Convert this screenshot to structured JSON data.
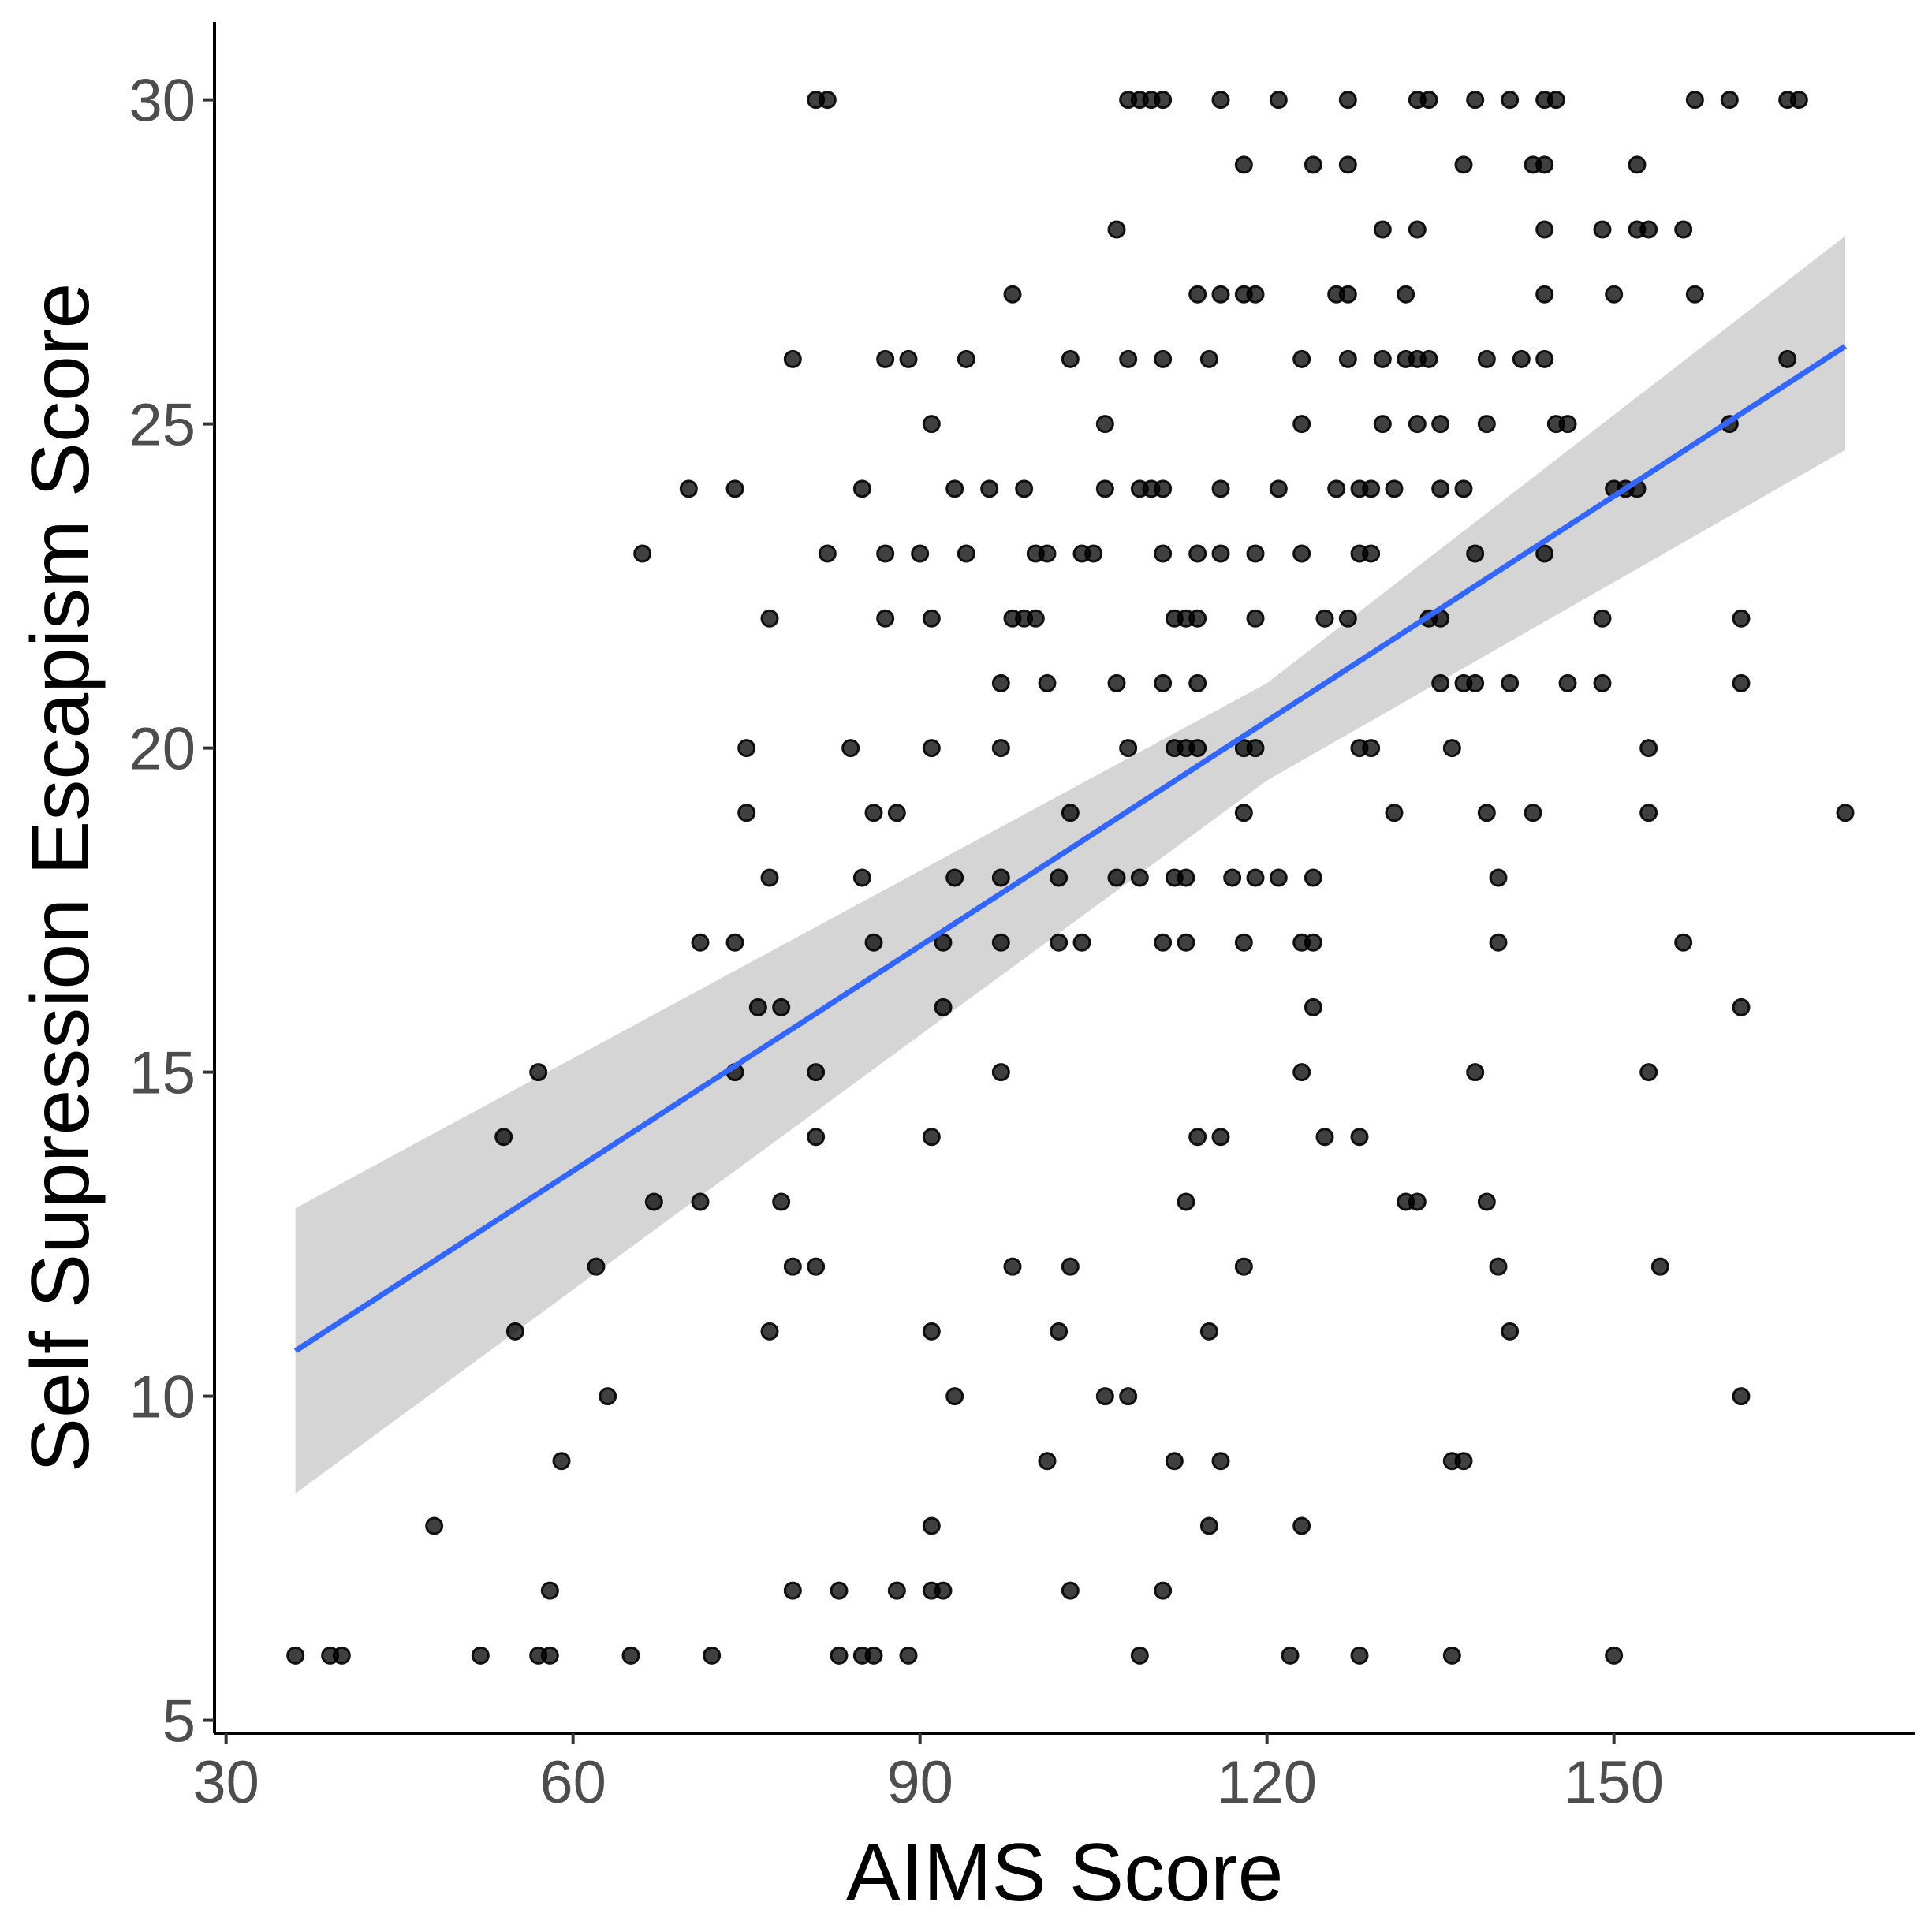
{
  "chart_data": {
    "type": "scatter",
    "title": "",
    "xlabel": "AIMS Score",
    "ylabel": "Self Supression Escapism Score",
    "xlim": [
      29,
      176
    ],
    "ylim": [
      4.8,
      31.2
    ],
    "x_ticks": [
      30,
      60,
      90,
      120,
      150
    ],
    "y_ticks": [
      5,
      10,
      15,
      20,
      25,
      30
    ],
    "grid": false,
    "legend": "none",
    "colors": {
      "points": "#000000",
      "fit_line": "#3366FF",
      "ci_band": "#D3D3D3"
    },
    "fit_line": {
      "x": [
        36,
        170
      ],
      "y": [
        10.7,
        26.2
      ]
    },
    "confidence_band": {
      "x": [
        36,
        120,
        170
      ],
      "lower": [
        8.5,
        19.5,
        24.6
      ],
      "upper": [
        12.9,
        21.0,
        27.9
      ]
    },
    "points": [
      [
        36,
        6
      ],
      [
        39,
        6
      ],
      [
        40,
        6
      ],
      [
        52,
        6
      ],
      [
        57,
        6
      ],
      [
        58,
        6
      ],
      [
        65,
        6
      ],
      [
        72,
        6
      ],
      [
        83,
        6
      ],
      [
        85,
        6
      ],
      [
        86,
        6
      ],
      [
        89,
        6
      ],
      [
        109,
        6
      ],
      [
        122,
        6
      ],
      [
        128,
        6
      ],
      [
        136,
        6
      ],
      [
        150,
        6
      ],
      [
        58,
        7
      ],
      [
        79,
        7
      ],
      [
        83,
        7
      ],
      [
        88,
        7
      ],
      [
        91,
        7
      ],
      [
        92,
        7
      ],
      [
        103,
        7
      ],
      [
        111,
        7
      ],
      [
        48,
        8
      ],
      [
        91,
        8
      ],
      [
        115,
        8
      ],
      [
        123,
        8
      ],
      [
        59,
        9
      ],
      [
        101,
        9
      ],
      [
        112,
        9
      ],
      [
        116,
        9
      ],
      [
        136,
        9
      ],
      [
        137,
        9
      ],
      [
        63,
        10
      ],
      [
        93,
        10
      ],
      [
        106,
        10
      ],
      [
        108,
        10
      ],
      [
        161,
        10
      ],
      [
        55,
        11
      ],
      [
        77,
        11
      ],
      [
        91,
        11
      ],
      [
        102,
        11
      ],
      [
        115,
        11
      ],
      [
        141,
        11
      ],
      [
        62,
        12
      ],
      [
        79,
        12
      ],
      [
        81,
        12
      ],
      [
        98,
        12
      ],
      [
        103,
        12
      ],
      [
        118,
        12
      ],
      [
        140,
        12
      ],
      [
        154,
        12
      ],
      [
        67,
        13
      ],
      [
        71,
        13
      ],
      [
        78,
        13
      ],
      [
        113,
        13
      ],
      [
        132,
        13
      ],
      [
        133,
        13
      ],
      [
        139,
        13
      ],
      [
        54,
        14
      ],
      [
        81,
        14
      ],
      [
        91,
        14
      ],
      [
        114,
        14
      ],
      [
        116,
        14
      ],
      [
        125,
        14
      ],
      [
        128,
        14
      ],
      [
        57,
        15
      ],
      [
        74,
        15
      ],
      [
        81,
        15
      ],
      [
        97,
        15
      ],
      [
        123,
        15
      ],
      [
        138,
        15
      ],
      [
        153,
        15
      ],
      [
        76,
        16
      ],
      [
        78,
        16
      ],
      [
        92,
        16
      ],
      [
        124,
        16
      ],
      [
        161,
        16
      ],
      [
        71,
        17
      ],
      [
        74,
        17
      ],
      [
        86,
        17
      ],
      [
        92,
        17
      ],
      [
        97,
        17
      ],
      [
        102,
        17
      ],
      [
        104,
        17
      ],
      [
        111,
        17
      ],
      [
        113,
        17
      ],
      [
        118,
        17
      ],
      [
        123,
        17
      ],
      [
        124,
        17
      ],
      [
        140,
        17
      ],
      [
        156,
        17
      ],
      [
        77,
        18
      ],
      [
        85,
        18
      ],
      [
        93,
        18
      ],
      [
        97,
        18
      ],
      [
        102,
        18
      ],
      [
        107,
        18
      ],
      [
        109,
        18
      ],
      [
        112,
        18
      ],
      [
        113,
        18
      ],
      [
        117,
        18
      ],
      [
        119,
        18
      ],
      [
        121,
        18
      ],
      [
        124,
        18
      ],
      [
        140,
        18
      ],
      [
        75,
        19
      ],
      [
        86,
        19
      ],
      [
        88,
        19
      ],
      [
        103,
        19
      ],
      [
        118,
        19
      ],
      [
        131,
        19
      ],
      [
        139,
        19
      ],
      [
        143,
        19
      ],
      [
        153,
        19
      ],
      [
        170,
        19
      ],
      [
        75,
        20
      ],
      [
        84,
        20
      ],
      [
        91,
        20
      ],
      [
        97,
        20
      ],
      [
        108,
        20
      ],
      [
        112,
        20
      ],
      [
        113,
        20
      ],
      [
        114,
        20
      ],
      [
        118,
        20
      ],
      [
        119,
        20
      ],
      [
        128,
        20
      ],
      [
        129,
        20
      ],
      [
        136,
        20
      ],
      [
        153,
        20
      ],
      [
        97,
        21
      ],
      [
        101,
        21
      ],
      [
        107,
        21
      ],
      [
        111,
        21
      ],
      [
        114,
        21
      ],
      [
        135,
        21
      ],
      [
        137,
        21
      ],
      [
        138,
        21
      ],
      [
        141,
        21
      ],
      [
        146,
        21
      ],
      [
        149,
        21
      ],
      [
        161,
        21
      ],
      [
        77,
        22
      ],
      [
        87,
        22
      ],
      [
        91,
        22
      ],
      [
        98,
        22
      ],
      [
        99,
        22
      ],
      [
        100,
        22
      ],
      [
        112,
        22
      ],
      [
        113,
        22
      ],
      [
        114,
        22
      ],
      [
        119,
        22
      ],
      [
        125,
        22
      ],
      [
        127,
        22
      ],
      [
        134,
        22
      ],
      [
        135,
        22
      ],
      [
        149,
        22
      ],
      [
        161,
        22
      ],
      [
        66,
        23
      ],
      [
        82,
        23
      ],
      [
        87,
        23
      ],
      [
        90,
        23
      ],
      [
        94,
        23
      ],
      [
        100,
        23
      ],
      [
        101,
        23
      ],
      [
        104,
        23
      ],
      [
        105,
        23
      ],
      [
        111,
        23
      ],
      [
        114,
        23
      ],
      [
        116,
        23
      ],
      [
        119,
        23
      ],
      [
        123,
        23
      ],
      [
        128,
        23
      ],
      [
        129,
        23
      ],
      [
        138,
        23
      ],
      [
        144,
        23
      ],
      [
        70,
        24
      ],
      [
        74,
        24
      ],
      [
        85,
        24
      ],
      [
        93,
        24
      ],
      [
        96,
        24
      ],
      [
        99,
        24
      ],
      [
        106,
        24
      ],
      [
        109,
        24
      ],
      [
        110,
        24
      ],
      [
        111,
        24
      ],
      [
        116,
        24
      ],
      [
        121,
        24
      ],
      [
        126,
        24
      ],
      [
        128,
        24
      ],
      [
        129,
        24
      ],
      [
        131,
        24
      ],
      [
        135,
        24
      ],
      [
        137,
        24
      ],
      [
        150,
        24
      ],
      [
        151,
        24
      ],
      [
        152,
        24
      ],
      [
        91,
        25
      ],
      [
        106,
        25
      ],
      [
        123,
        25
      ],
      [
        130,
        25
      ],
      [
        133,
        25
      ],
      [
        135,
        25
      ],
      [
        139,
        25
      ],
      [
        145,
        25
      ],
      [
        146,
        25
      ],
      [
        160,
        25
      ],
      [
        79,
        26
      ],
      [
        87,
        26
      ],
      [
        89,
        26
      ],
      [
        94,
        26
      ],
      [
        103,
        26
      ],
      [
        108,
        26
      ],
      [
        111,
        26
      ],
      [
        115,
        26
      ],
      [
        123,
        26
      ],
      [
        127,
        26
      ],
      [
        130,
        26
      ],
      [
        132,
        26
      ],
      [
        133,
        26
      ],
      [
        134,
        26
      ],
      [
        139,
        26
      ],
      [
        142,
        26
      ],
      [
        144,
        26
      ],
      [
        165,
        26
      ],
      [
        98,
        27
      ],
      [
        114,
        27
      ],
      [
        116,
        27
      ],
      [
        118,
        27
      ],
      [
        119,
        27
      ],
      [
        126,
        27
      ],
      [
        127,
        27
      ],
      [
        132,
        27
      ],
      [
        144,
        27
      ],
      [
        150,
        27
      ],
      [
        157,
        27
      ],
      [
        107,
        28
      ],
      [
        130,
        28
      ],
      [
        133,
        28
      ],
      [
        144,
        28
      ],
      [
        149,
        28
      ],
      [
        152,
        28
      ],
      [
        153,
        28
      ],
      [
        156,
        28
      ],
      [
        118,
        29
      ],
      [
        124,
        29
      ],
      [
        127,
        29
      ],
      [
        137,
        29
      ],
      [
        143,
        29
      ],
      [
        144,
        29
      ],
      [
        152,
        29
      ],
      [
        81,
        30
      ],
      [
        82,
        30
      ],
      [
        108,
        30
      ],
      [
        109,
        30
      ],
      [
        110,
        30
      ],
      [
        111,
        30
      ],
      [
        116,
        30
      ],
      [
        121,
        30
      ],
      [
        127,
        30
      ],
      [
        133,
        30
      ],
      [
        134,
        30
      ],
      [
        138,
        30
      ],
      [
        141,
        30
      ],
      [
        144,
        30
      ],
      [
        145,
        30
      ],
      [
        157,
        30
      ],
      [
        160,
        30
      ],
      [
        165,
        30
      ],
      [
        166,
        30
      ]
    ]
  }
}
